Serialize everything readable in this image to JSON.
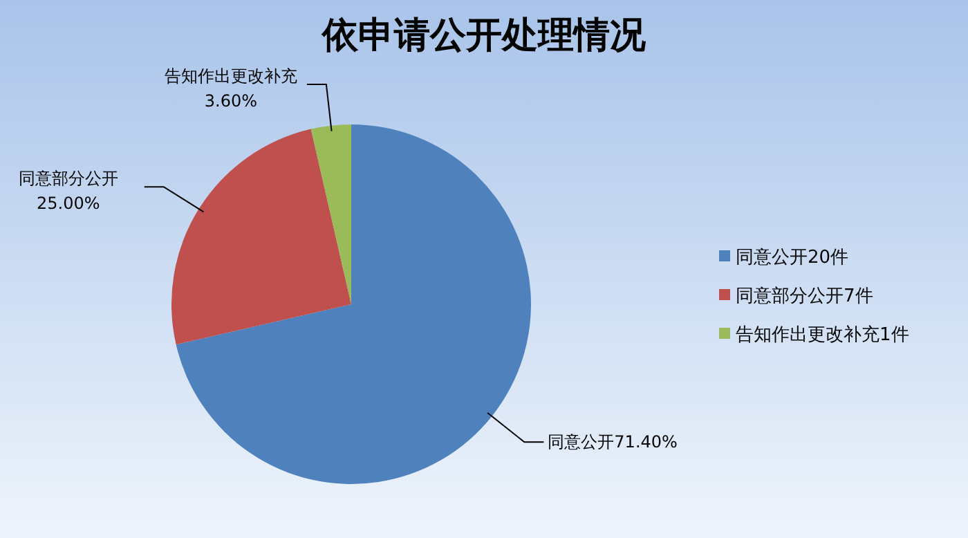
{
  "chart_data": {
    "type": "pie",
    "title": "依申请公开处理情况",
    "categories": [
      "同意公开20件",
      "同意部分公开7件",
      "告知作出更改补充1件"
    ],
    "values": [
      71.4,
      25.0,
      3.6
    ],
    "colors": [
      "#4f81bd",
      "#c0504d",
      "#9bbb59"
    ],
    "value_labels": [
      "同意公开71.40%",
      "同意部分公开\n25.00%",
      "告知作出更改补充\n3.60%"
    ],
    "legend": "right"
  }
}
